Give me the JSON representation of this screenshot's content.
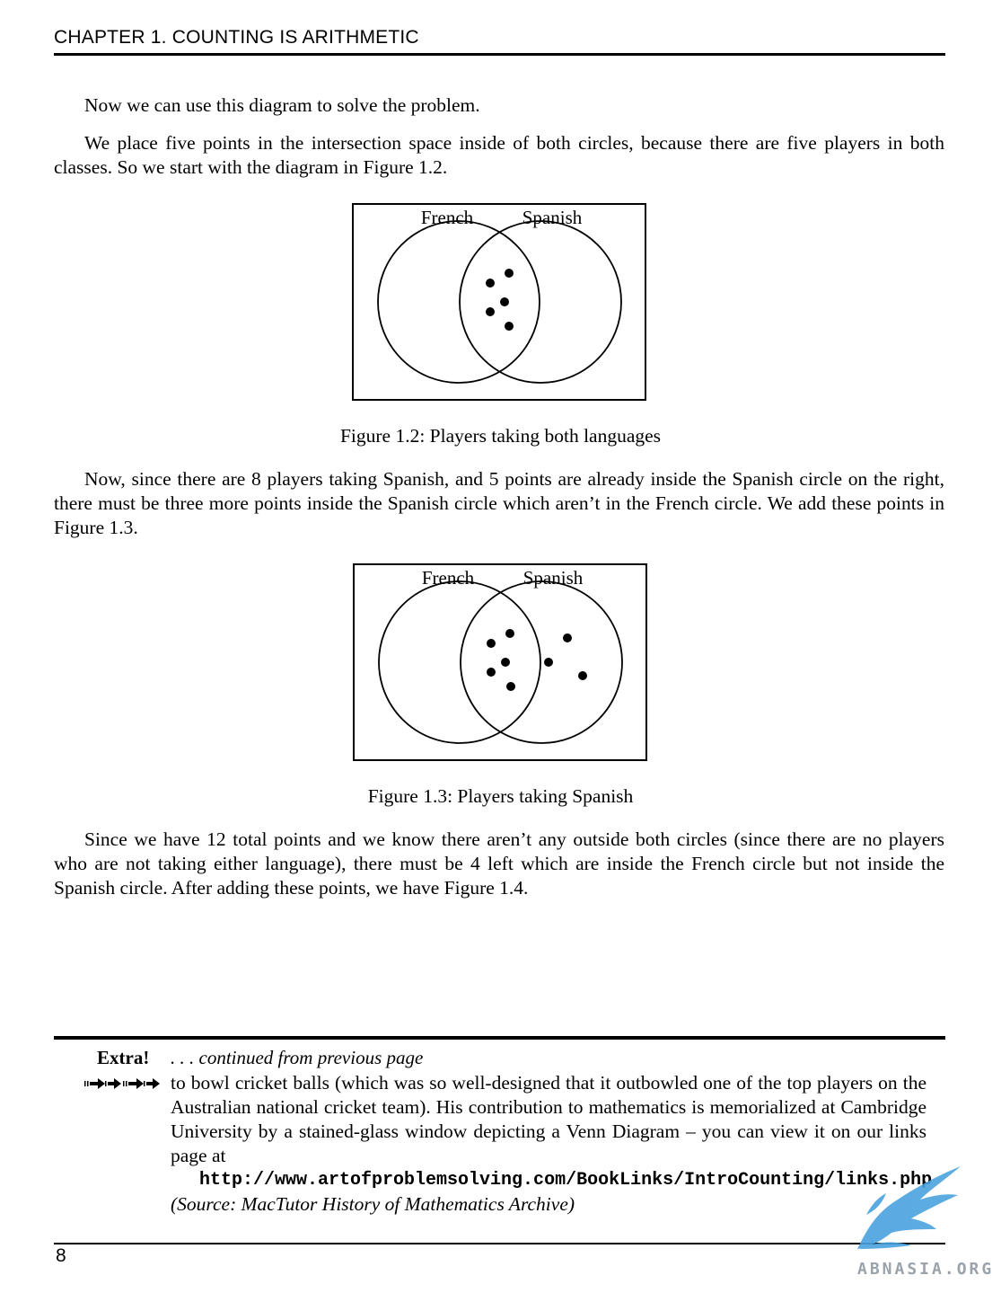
{
  "header": {
    "title": "CHAPTER 1.  COUNTING IS ARITHMETIC"
  },
  "paragraphs": [
    "Now we can use this diagram to solve the problem.",
    "We place five points in the intersection space inside of both circles, because there are five players in both classes. So we start with the diagram in Figure 1.2.",
    "Now, since there are 8 players taking Spanish, and 5 points are already inside the Spanish circle on the right, there must be three more points inside the Spanish circle which aren’t in the French circle. We add these points in Figure 1.3.",
    "Since we have 12 total points and we know there aren’t any outside both circles (since there are no players who are not taking either language), there must be 4 left which are inside the French circle but not inside the Spanish circle. After adding these points, we have Figure 1.4."
  ],
  "figures": [
    {
      "labels": {
        "left": "French",
        "right": "Spanish"
      },
      "caption": "Figure 1.2: Players taking both languages",
      "points": {
        "both": 5,
        "spanish_only": 0,
        "french_only": 0
      }
    },
    {
      "labels": {
        "left": "French",
        "right": "Spanish"
      },
      "caption": "Figure 1.3: Players taking Spanish",
      "points": {
        "both": 5,
        "spanish_only": 3,
        "french_only": 0
      }
    }
  ],
  "extra": {
    "label": "Extra!",
    "continued": ". . . continued from previous page",
    "text": "to bowl cricket balls (which was so well-designed that it outbowled one of the top players on the Australian national cricket team). His contribution to mathematics is memorialized at Cambridge University by a stained-glass window depicting a Venn Diagram – you can view it on our links page at",
    "url": "http://www.artofproblemsolving.com/BookLinks/IntroCounting/links.php",
    "source": "(Source: MacTutor History of Mathematics Archive)"
  },
  "footer": {
    "page_number": "8"
  },
  "watermark": {
    "text": "ABNASIA.ORG",
    "color": "#4aa3df"
  }
}
